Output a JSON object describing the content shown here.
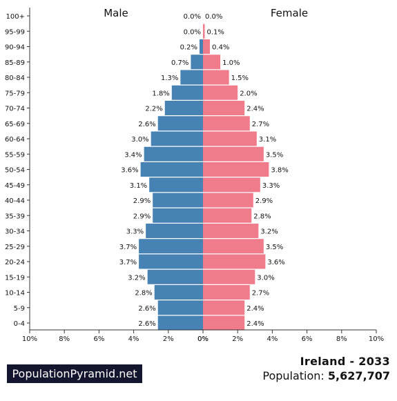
{
  "chart_data": {
    "type": "bar",
    "orientation": "horizontal-butterfly",
    "left_label": "Male",
    "right_label": "Female",
    "categories": [
      "100+",
      "95-99",
      "90-94",
      "85-89",
      "80-84",
      "75-79",
      "70-74",
      "65-69",
      "60-64",
      "55-59",
      "50-54",
      "45-49",
      "40-44",
      "35-39",
      "30-34",
      "25-29",
      "20-24",
      "15-19",
      "10-14",
      "5-9",
      "0-4"
    ],
    "series": [
      {
        "name": "Male",
        "color": "#4682b4",
        "values": [
          0.0,
          0.0,
          0.2,
          0.7,
          1.3,
          1.8,
          2.2,
          2.6,
          3.0,
          3.4,
          3.6,
          3.1,
          2.9,
          2.9,
          3.3,
          3.7,
          3.7,
          3.2,
          2.8,
          2.6,
          2.6
        ],
        "labels": [
          "0.0%",
          "0.0%",
          "0.2%",
          "0.7%",
          "1.3%",
          "1.8%",
          "2.2%",
          "2.6%",
          "3.0%",
          "3.4%",
          "3.6%",
          "3.1%",
          "2.9%",
          "2.9%",
          "3.3%",
          "3.7%",
          "3.7%",
          "3.2%",
          "2.8%",
          "2.6%",
          "2.6%"
        ]
      },
      {
        "name": "Female",
        "color": "#f07b8a",
        "values": [
          0.0,
          0.1,
          0.4,
          1.0,
          1.5,
          2.0,
          2.4,
          2.7,
          3.1,
          3.5,
          3.8,
          3.3,
          2.9,
          2.8,
          3.2,
          3.5,
          3.6,
          3.0,
          2.7,
          2.4,
          2.4
        ],
        "labels": [
          "0.0%",
          "0.1%",
          "0.4%",
          "1.0%",
          "1.5%",
          "2.0%",
          "2.4%",
          "2.7%",
          "3.1%",
          "3.5%",
          "3.8%",
          "3.3%",
          "2.9%",
          "2.8%",
          "3.2%",
          "3.5%",
          "3.6%",
          "3.0%",
          "2.7%",
          "2.4%",
          "2.4%"
        ]
      }
    ],
    "xlim": [
      0,
      10
    ],
    "x_ticks_left": [
      "10%",
      "8%",
      "6%",
      "4%",
      "2%",
      "0%"
    ],
    "x_ticks_right": [
      "0%",
      "2%",
      "4%",
      "6%",
      "8%",
      "10%"
    ],
    "grid": false
  },
  "brand": "PopulationPyramid.net",
  "info": {
    "title": "Ireland - 2033",
    "population_label": "Population:",
    "population_value": "5,627,707"
  }
}
